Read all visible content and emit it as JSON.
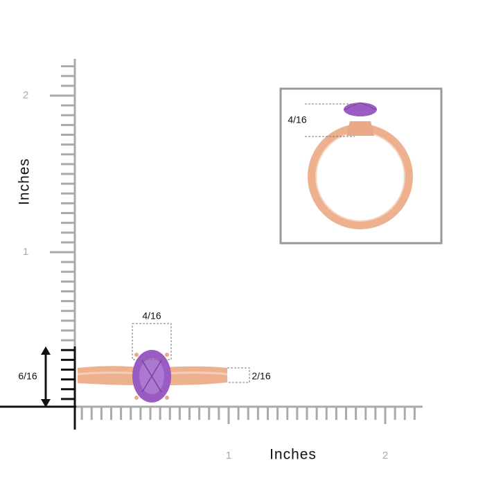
{
  "y_axis": {
    "label": "Inches",
    "ticks": [
      "2",
      "1"
    ]
  },
  "x_axis": {
    "label": "Inches",
    "ticks": [
      "1",
      "2"
    ]
  },
  "dimensions": {
    "gem_width": "4/16",
    "band_width": "2/16",
    "height": "6/16",
    "inset_gem_height": "4/16"
  }
}
